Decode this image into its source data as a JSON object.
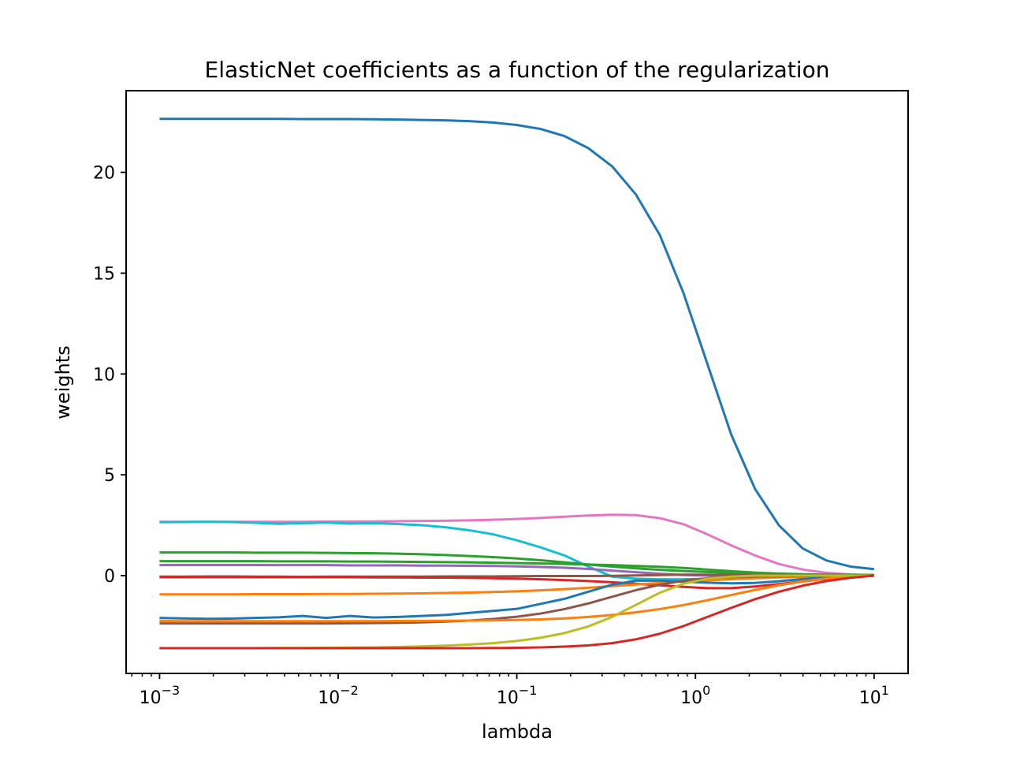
{
  "chart_data": {
    "type": "line",
    "title": "ElasticNet coefficients as a function of the regularization",
    "xlabel": "lambda",
    "ylabel": "weights",
    "x_scale": "log",
    "xlim": [
      0.00065,
      15.5
    ],
    "ylim": [
      -4.85,
      24.05
    ],
    "grid": false,
    "legend": "none",
    "x_ticks": [
      {
        "value": 0.001,
        "base": "10",
        "exp": "−3"
      },
      {
        "value": 0.01,
        "base": "10",
        "exp": "−2"
      },
      {
        "value": 0.1,
        "base": "10",
        "exp": "−1"
      },
      {
        "value": 1,
        "base": "10",
        "exp": "0"
      },
      {
        "value": 10,
        "base": "10",
        "exp": "1"
      }
    ],
    "y_ticks": [
      {
        "value": 0,
        "label": "0"
      },
      {
        "value": 5,
        "label": "5"
      },
      {
        "value": 10,
        "label": "10"
      },
      {
        "value": 15,
        "label": "15"
      },
      {
        "value": 20,
        "label": "20"
      }
    ],
    "x": [
      0.001,
      0.00136,
      0.00185,
      0.00251,
      0.00342,
      0.00464,
      0.00631,
      0.00858,
      0.01166,
      0.01585,
      0.02154,
      0.02929,
      0.03981,
      0.05412,
      0.07356,
      0.1,
      0.13594,
      0.18478,
      0.25119,
      0.34145,
      0.46416,
      0.63096,
      0.8577,
      1.16591,
      1.58489,
      2.15443,
      2.92864,
      3.98107,
      5.4117,
      7.35642,
      10.0
    ],
    "series": [
      {
        "color": "#1f77b4",
        "values": [
          22.65,
          22.65,
          22.65,
          22.65,
          22.65,
          22.65,
          22.64,
          22.64,
          22.64,
          22.63,
          22.62,
          22.6,
          22.58,
          22.54,
          22.47,
          22.35,
          22.15,
          21.8,
          21.2,
          20.3,
          18.9,
          16.9,
          14.0,
          10.5,
          7.0,
          4.3,
          2.5,
          1.35,
          0.75,
          0.45,
          0.32
        ]
      },
      {
        "color": "#e377c2",
        "values": [
          2.67,
          2.67,
          2.67,
          2.67,
          2.67,
          2.67,
          2.67,
          2.68,
          2.68,
          2.69,
          2.7,
          2.71,
          2.72,
          2.74,
          2.77,
          2.81,
          2.86,
          2.92,
          2.98,
          3.02,
          3.0,
          2.85,
          2.55,
          2.05,
          1.5,
          1.0,
          0.58,
          0.3,
          0.14,
          0.06,
          0.02
        ]
      },
      {
        "color": "#17becf",
        "values": [
          2.65,
          2.66,
          2.67,
          2.66,
          2.62,
          2.57,
          2.6,
          2.63,
          2.58,
          2.6,
          2.56,
          2.5,
          2.4,
          2.25,
          2.05,
          1.75,
          1.4,
          1.0,
          0.45,
          -0.05,
          -0.15,
          -0.18,
          -0.18,
          -0.16,
          -0.13,
          -0.1,
          -0.07,
          -0.05,
          -0.03,
          -0.02,
          -0.01
        ]
      },
      {
        "color": "#2ca02c",
        "values": [
          1.15,
          1.15,
          1.15,
          1.15,
          1.14,
          1.14,
          1.14,
          1.13,
          1.12,
          1.11,
          1.09,
          1.06,
          1.02,
          0.97,
          0.92,
          0.85,
          0.76,
          0.66,
          0.55,
          0.45,
          0.36,
          0.29,
          0.23,
          0.18,
          0.14,
          0.1,
          0.07,
          0.04,
          0.02,
          0.01,
          0.0
        ]
      },
      {
        "color": "#2ca02c",
        "values": [
          0.72,
          0.72,
          0.72,
          0.72,
          0.72,
          0.71,
          0.71,
          0.71,
          0.7,
          0.7,
          0.69,
          0.68,
          0.67,
          0.66,
          0.64,
          0.62,
          0.6,
          0.58,
          0.55,
          0.52,
          0.48,
          0.44,
          0.38,
          0.3,
          0.22,
          0.15,
          0.1,
          0.07,
          0.05,
          0.04,
          0.04
        ]
      },
      {
        "color": "#9467bd",
        "values": [
          0.52,
          0.52,
          0.52,
          0.52,
          0.52,
          0.52,
          0.52,
          0.52,
          0.51,
          0.51,
          0.51,
          0.5,
          0.5,
          0.49,
          0.48,
          0.46,
          0.43,
          0.39,
          0.33,
          0.25,
          0.17,
          0.09,
          0.03,
          0.0,
          -0.02,
          -0.03,
          -0.03,
          -0.02,
          -0.01,
          0.0,
          0.0
        ]
      },
      {
        "color": "#8c564b",
        "values": [
          -0.05,
          -0.05,
          -0.04,
          -0.04,
          -0.05,
          -0.05,
          -0.06,
          -0.05,
          -0.05,
          -0.05,
          -0.05,
          -0.05,
          -0.04,
          -0.04,
          -0.04,
          -0.03,
          -0.02,
          -0.02,
          -0.02,
          -0.01,
          0.01,
          0.03,
          0.05,
          0.05,
          0.04,
          0.03,
          0.02,
          0.01,
          0.01,
          0.0,
          0.0
        ]
      },
      {
        "color": "#d62728",
        "values": [
          -0.08,
          -0.08,
          -0.08,
          -0.08,
          -0.08,
          -0.08,
          -0.08,
          -0.08,
          -0.08,
          -0.09,
          -0.09,
          -0.1,
          -0.1,
          -0.11,
          -0.13,
          -0.15,
          -0.18,
          -0.22,
          -0.27,
          -0.33,
          -0.4,
          -0.48,
          -0.56,
          -0.62,
          -0.62,
          -0.54,
          -0.42,
          -0.29,
          -0.16,
          -0.06,
          0.0
        ]
      },
      {
        "color": "#ff7f0e",
        "values": [
          -0.93,
          -0.93,
          -0.93,
          -0.93,
          -0.92,
          -0.92,
          -0.92,
          -0.91,
          -0.91,
          -0.9,
          -0.89,
          -0.88,
          -0.86,
          -0.84,
          -0.81,
          -0.78,
          -0.73,
          -0.67,
          -0.6,
          -0.52,
          -0.44,
          -0.36,
          -0.29,
          -0.23,
          -0.18,
          -0.13,
          -0.09,
          -0.06,
          -0.03,
          -0.01,
          0.0
        ]
      },
      {
        "color": "#1f77b4",
        "values": [
          -2.1,
          -2.12,
          -2.14,
          -2.13,
          -2.1,
          -2.07,
          -2.0,
          -2.1,
          -2.0,
          -2.08,
          -2.05,
          -2.0,
          -1.95,
          -1.85,
          -1.75,
          -1.65,
          -1.4,
          -1.15,
          -0.8,
          -0.45,
          -0.25,
          -0.25,
          -0.3,
          -0.35,
          -0.38,
          -0.36,
          -0.28,
          -0.17,
          -0.08,
          -0.02,
          0.0
        ]
      },
      {
        "color": "#8c564b",
        "values": [
          -2.37,
          -2.37,
          -2.37,
          -2.37,
          -2.37,
          -2.37,
          -2.37,
          -2.37,
          -2.36,
          -2.35,
          -2.34,
          -2.32,
          -2.28,
          -2.23,
          -2.15,
          -2.04,
          -1.88,
          -1.66,
          -1.38,
          -1.05,
          -0.72,
          -0.45,
          -0.25,
          -0.13,
          -0.07,
          -0.04,
          -0.03,
          -0.02,
          -0.01,
          0.0,
          0.0
        ]
      },
      {
        "color": "#ff7f0e",
        "values": [
          -2.25,
          -2.26,
          -2.26,
          -2.26,
          -2.26,
          -2.26,
          -2.26,
          -2.26,
          -2.26,
          -2.26,
          -2.25,
          -2.25,
          -2.24,
          -2.23,
          -2.22,
          -2.2,
          -2.17,
          -2.12,
          -2.05,
          -1.95,
          -1.82,
          -1.66,
          -1.46,
          -1.22,
          -0.96,
          -0.71,
          -0.48,
          -0.29,
          -0.14,
          -0.05,
          0.0
        ]
      },
      {
        "color": "#bcbd22",
        "values": [
          -3.6,
          -3.6,
          -3.6,
          -3.6,
          -3.6,
          -3.59,
          -3.59,
          -3.58,
          -3.57,
          -3.56,
          -3.54,
          -3.51,
          -3.47,
          -3.42,
          -3.35,
          -3.24,
          -3.08,
          -2.85,
          -2.52,
          -2.05,
          -1.45,
          -0.85,
          -0.4,
          -0.15,
          -0.05,
          0.0,
          0.0,
          0.0,
          0.0,
          0.0,
          0.0
        ]
      },
      {
        "color": "#d62728",
        "values": [
          -3.6,
          -3.6,
          -3.6,
          -3.6,
          -3.6,
          -3.6,
          -3.6,
          -3.6,
          -3.6,
          -3.6,
          -3.6,
          -3.6,
          -3.6,
          -3.6,
          -3.59,
          -3.58,
          -3.56,
          -3.52,
          -3.46,
          -3.35,
          -3.16,
          -2.88,
          -2.5,
          -2.05,
          -1.6,
          -1.17,
          -0.8,
          -0.5,
          -0.27,
          -0.11,
          0.0
        ]
      }
    ]
  }
}
